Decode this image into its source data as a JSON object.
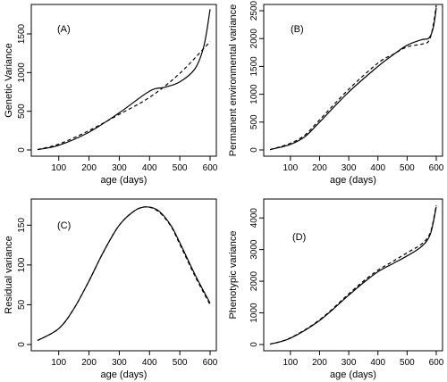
{
  "chart_data": [
    {
      "type": "line",
      "panel_label": "(A)",
      "xlabel": "age (days)",
      "ylabel": "Genetic Variance",
      "xlim": [
        30,
        600
      ],
      "ylim": [
        0,
        1800
      ],
      "xticks": [
        100,
        200,
        300,
        400,
        500,
        600
      ],
      "yticks": [
        0,
        500,
        1000,
        1500
      ],
      "grid": false,
      "series": [
        {
          "style": "solid",
          "x": [
            30,
            100,
            200,
            300,
            400,
            450,
            500,
            550,
            580,
            600
          ],
          "y": [
            5,
            60,
            230,
            480,
            760,
            810,
            880,
            1050,
            1350,
            1820
          ]
        },
        {
          "style": "dashed",
          "x": [
            30,
            100,
            200,
            300,
            400,
            500,
            600
          ],
          "y": [
            5,
            75,
            250,
            460,
            680,
            990,
            1400
          ]
        }
      ]
    },
    {
      "type": "line",
      "panel_label": "(B)",
      "xlabel": "age (days)",
      "ylabel": "Permanent environmental variance",
      "xlim": [
        30,
        600
      ],
      "ylim": [
        0,
        2500
      ],
      "xticks": [
        100,
        200,
        300,
        400,
        500,
        600
      ],
      "yticks": [
        0,
        500,
        1000,
        1500,
        2000,
        2500
      ],
      "grid": false,
      "series": [
        {
          "style": "solid",
          "x": [
            30,
            100,
            150,
            200,
            300,
            400,
            450,
            500,
            550,
            575,
            590,
            600
          ],
          "y": [
            5,
            100,
            240,
            500,
            1040,
            1500,
            1700,
            1880,
            1980,
            2010,
            2200,
            2550
          ]
        },
        {
          "style": "dashed",
          "x": [
            30,
            100,
            150,
            200,
            300,
            400,
            450,
            500,
            550,
            575,
            590,
            600
          ],
          "y": [
            5,
            120,
            270,
            540,
            1090,
            1560,
            1710,
            1850,
            1900,
            1960,
            2250,
            2600
          ]
        }
      ]
    },
    {
      "type": "line",
      "panel_label": "(C)",
      "xlabel": "age (days)",
      "ylabel": "Residual variance",
      "xlim": [
        30,
        600
      ],
      "ylim": [
        0,
        175
      ],
      "xticks": [
        100,
        200,
        300,
        400,
        500,
        600
      ],
      "yticks": [
        0,
        50,
        100,
        150
      ],
      "grid": false,
      "series": [
        {
          "style": "solid",
          "x": [
            30,
            100,
            150,
            200,
            250,
            300,
            350,
            390,
            430,
            470,
            500,
            550,
            600
          ],
          "y": [
            5,
            20,
            45,
            80,
            118,
            150,
            168,
            173,
            168,
            150,
            128,
            88,
            52
          ]
        },
        {
          "style": "dashed",
          "x": [
            30,
            100,
            150,
            200,
            250,
            300,
            350,
            390,
            430,
            470,
            500,
            550,
            600
          ],
          "y": [
            5,
            20,
            45,
            80,
            118,
            150,
            168,
            173,
            167,
            149,
            126,
            86,
            50
          ]
        }
      ]
    },
    {
      "type": "line",
      "panel_label": "(D)",
      "xlabel": "age (days)",
      "ylabel": "Phenotypic variance",
      "xlim": [
        30,
        600
      ],
      "ylim": [
        0,
        4400
      ],
      "xticks": [
        100,
        200,
        300,
        400,
        500,
        600
      ],
      "yticks": [
        0,
        1000,
        2000,
        3000,
        4000
      ],
      "grid": false,
      "series": [
        {
          "style": "solid",
          "x": [
            30,
            100,
            200,
            300,
            350,
            400,
            450,
            500,
            550,
            580,
            600
          ],
          "y": [
            10,
            200,
            760,
            1560,
            1950,
            2300,
            2550,
            2800,
            3100,
            3500,
            4350
          ]
        },
        {
          "style": "dashed",
          "x": [
            30,
            100,
            200,
            300,
            350,
            400,
            450,
            500,
            550,
            580,
            600
          ],
          "y": [
            10,
            210,
            780,
            1600,
            2000,
            2350,
            2620,
            2900,
            3180,
            3550,
            4400
          ]
        }
      ]
    }
  ]
}
